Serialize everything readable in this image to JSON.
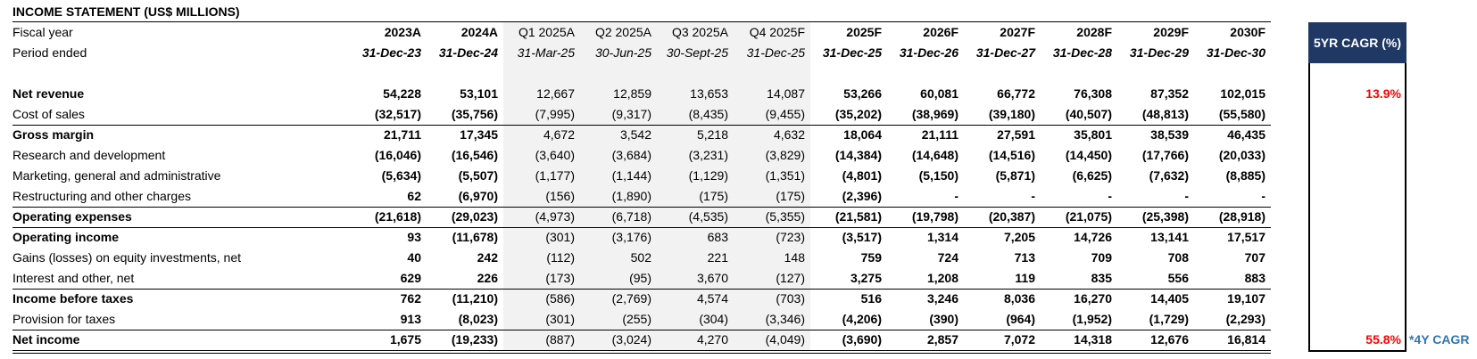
{
  "title": "INCOME STATEMENT (US$ MILLIONS)",
  "header": {
    "fiscal_label": "Fiscal year",
    "period_label": "Period ended",
    "cagr_label": "5YR CAGR (%)",
    "columns": [
      {
        "year": "2023A",
        "date": "31-Dec-23"
      },
      {
        "year": "2024A",
        "date": "31-Dec-24"
      },
      {
        "year": "Q1 2025A",
        "date": "31-Mar-25"
      },
      {
        "year": "Q2 2025A",
        "date": "30-Jun-25"
      },
      {
        "year": "Q3 2025A",
        "date": "30-Sept-25"
      },
      {
        "year": "Q4 2025F",
        "date": "31-Dec-25"
      },
      {
        "year": "2025F",
        "date": "31-Dec-25"
      },
      {
        "year": "2026F",
        "date": "31-Dec-26"
      },
      {
        "year": "2027F",
        "date": "31-Dec-27"
      },
      {
        "year": "2028F",
        "date": "31-Dec-28"
      },
      {
        "year": "2029F",
        "date": "31-Dec-29"
      },
      {
        "year": "2030F",
        "date": "31-Dec-30"
      }
    ]
  },
  "rows": [
    {
      "label": "Net revenue",
      "bold": true,
      "values": [
        "54,228",
        "53,101",
        "12,667",
        "12,859",
        "13,653",
        "14,087",
        "53,266",
        "60,081",
        "66,772",
        "76,308",
        "87,352",
        "102,015"
      ],
      "cagr": "13.9%"
    },
    {
      "label": "Cost of sales",
      "bold": false,
      "values": [
        "(32,517)",
        "(35,756)",
        "(7,995)",
        "(9,317)",
        "(8,435)",
        "(9,455)",
        "(35,202)",
        "(38,969)",
        "(39,180)",
        "(40,507)",
        "(48,813)",
        "(55,580)"
      ]
    },
    {
      "label": "Gross margin",
      "bold": true,
      "values": [
        "21,711",
        "17,345",
        "4,672",
        "3,542",
        "5,218",
        "4,632",
        "18,064",
        "21,111",
        "27,591",
        "35,801",
        "38,539",
        "46,435"
      ]
    },
    {
      "label": "Research and development",
      "bold": false,
      "values": [
        "(16,046)",
        "(16,546)",
        "(3,640)",
        "(3,684)",
        "(3,231)",
        "(3,829)",
        "(14,384)",
        "(14,648)",
        "(14,516)",
        "(14,450)",
        "(17,766)",
        "(20,033)"
      ]
    },
    {
      "label": "Marketing, general and administrative",
      "bold": false,
      "values": [
        "(5,634)",
        "(5,507)",
        "(1,177)",
        "(1,144)",
        "(1,129)",
        "(1,351)",
        "(4,801)",
        "(5,150)",
        "(5,871)",
        "(6,625)",
        "(7,632)",
        "(8,885)"
      ]
    },
    {
      "label": "Restructuring and other charges",
      "bold": false,
      "values": [
        "62",
        "(6,970)",
        "(156)",
        "(1,890)",
        "(175)",
        "(175)",
        "(2,396)",
        "-",
        "-",
        "-",
        "-",
        "-"
      ]
    },
    {
      "label": "Operating expenses",
      "bold": true,
      "values": [
        "(21,618)",
        "(29,023)",
        "(4,973)",
        "(6,718)",
        "(4,535)",
        "(5,355)",
        "(21,581)",
        "(19,798)",
        "(20,387)",
        "(21,075)",
        "(25,398)",
        "(28,918)"
      ]
    },
    {
      "label": "Operating income",
      "bold": true,
      "values": [
        "93",
        "(11,678)",
        "(301)",
        "(3,176)",
        "683",
        "(723)",
        "(3,517)",
        "1,314",
        "7,205",
        "14,726",
        "13,141",
        "17,517"
      ]
    },
    {
      "label": "Gains (losses) on equity investments, net",
      "bold": false,
      "values": [
        "40",
        "242",
        "(112)",
        "502",
        "221",
        "148",
        "759",
        "724",
        "713",
        "709",
        "708",
        "707"
      ]
    },
    {
      "label": "Interest and other, net",
      "bold": false,
      "values": [
        "629",
        "226",
        "(173)",
        "(95)",
        "3,670",
        "(127)",
        "3,275",
        "1,208",
        "119",
        "835",
        "556",
        "883"
      ]
    },
    {
      "label": "Income before taxes",
      "bold": true,
      "values": [
        "762",
        "(11,210)",
        "(586)",
        "(2,769)",
        "4,574",
        "(703)",
        "516",
        "3,246",
        "8,036",
        "16,270",
        "14,405",
        "19,107"
      ]
    },
    {
      "label": "Provision for taxes",
      "bold": false,
      "values": [
        "913",
        "(8,023)",
        "(301)",
        "(255)",
        "(304)",
        "(3,346)",
        "(4,206)",
        "(390)",
        "(964)",
        "(1,952)",
        "(1,729)",
        "(2,293)"
      ]
    },
    {
      "label": "Net income",
      "bold": true,
      "values": [
        "1,675",
        "(19,233)",
        "(887)",
        "(3,024)",
        "4,270",
        "(4,049)",
        "(3,690)",
        "2,857",
        "7,072",
        "14,318",
        "12,676",
        "16,814"
      ],
      "cagr": "55.8%",
      "note": "*4Y CAGR"
    }
  ]
}
